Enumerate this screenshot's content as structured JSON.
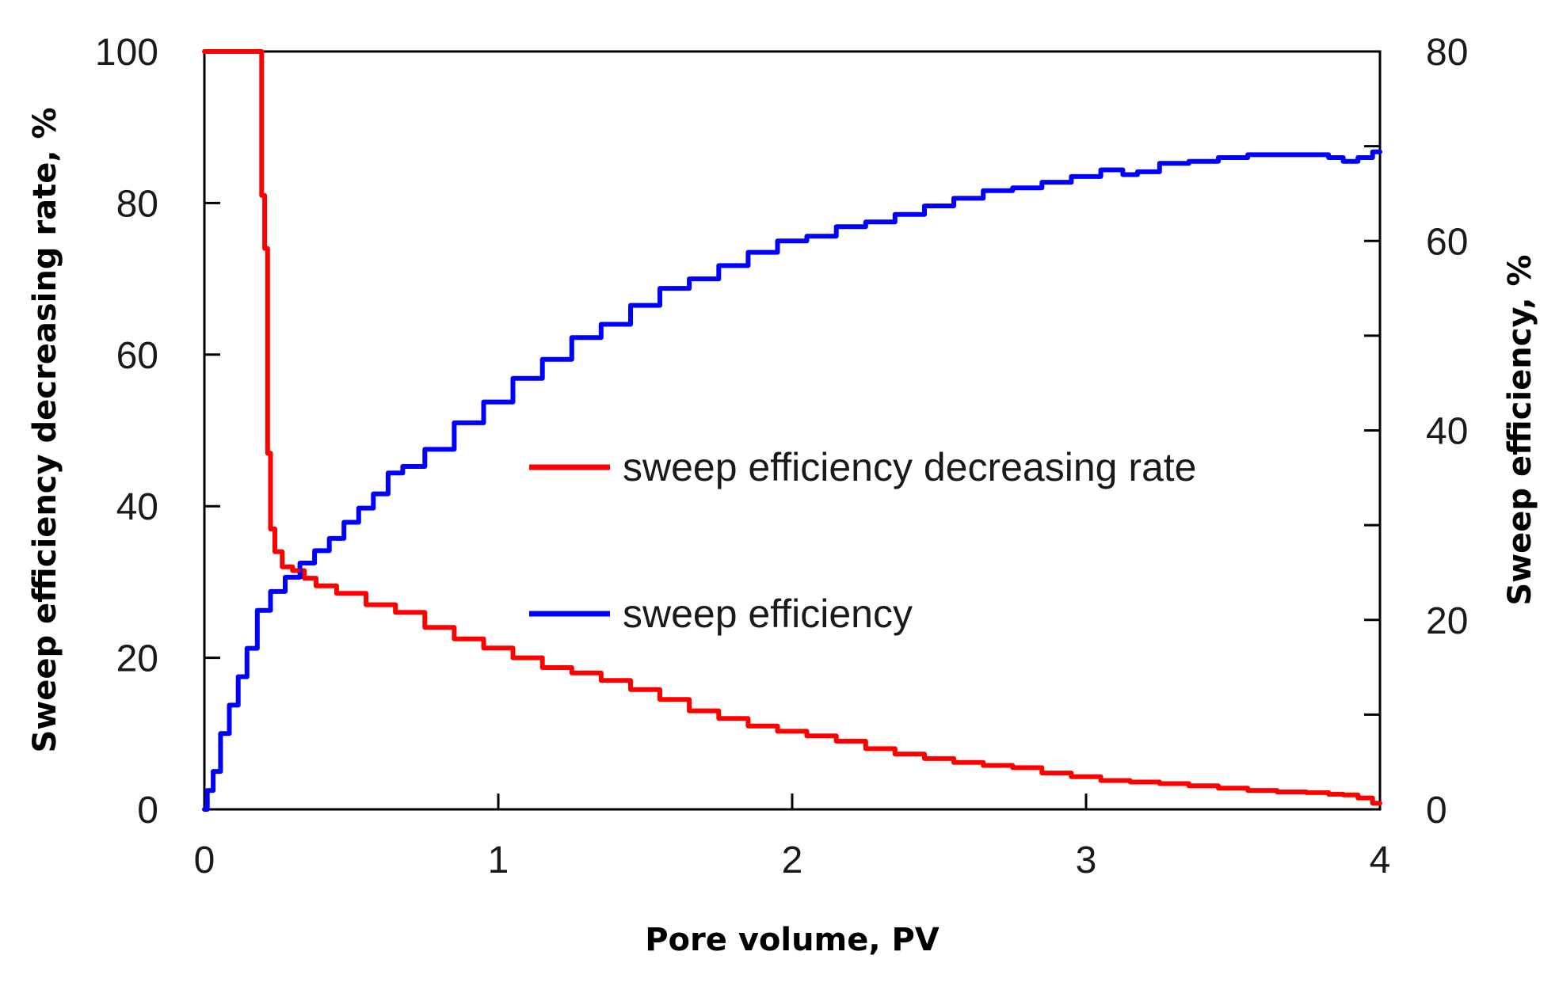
{
  "chart_data": {
    "type": "line",
    "xlabel": "Pore volume, PV",
    "ylabel_left": "Sweep efficiency decreasing rate, %",
    "ylabel_right": "Sweep efficiency, %",
    "xlim": [
      0,
      4
    ],
    "ylim_left": [
      0,
      100
    ],
    "ylim_right": [
      0,
      80
    ],
    "x_ticks": [
      0,
      1,
      2,
      3,
      4
    ],
    "x_tick_labels": [
      "0",
      "1",
      "2",
      "3",
      "4"
    ],
    "y_left_ticks": [
      0,
      20,
      40,
      60,
      80,
      100
    ],
    "y_left_tick_labels": [
      "0",
      "20",
      "40",
      "60",
      "80",
      "100"
    ],
    "y_right_ticks": [
      0,
      20,
      40,
      60,
      80
    ],
    "y_right_tick_labels": [
      "0",
      "20",
      "40",
      "60",
      "80"
    ],
    "y_right_minor_ticks": [
      10,
      30,
      50,
      70
    ],
    "grid": false,
    "legend_position": "center-right",
    "series": [
      {
        "name": "sweep efficiency decreasing rate",
        "axis": "left",
        "color": "#ff0000",
        "x": [
          0,
          0.19,
          0.2,
          0.21,
          0.22,
          0.23,
          0.25,
          0.28,
          0.32,
          0.36,
          0.4,
          0.5,
          0.6,
          0.7,
          0.8,
          0.9,
          1.0,
          1.1,
          1.2,
          1.3,
          1.4,
          1.5,
          1.6,
          1.7,
          1.8,
          1.9,
          2.0,
          2.1,
          2.2,
          2.3,
          2.4,
          2.5,
          2.6,
          2.7,
          2.8,
          2.9,
          3.0,
          3.1,
          3.2,
          3.3,
          3.4,
          3.5,
          3.6,
          3.7,
          3.8,
          3.85,
          3.9,
          3.95,
          4.0
        ],
        "y": [
          100,
          100,
          81,
          74,
          47,
          37,
          34,
          32,
          31.5,
          30.5,
          29.5,
          28.5,
          27,
          26,
          24,
          22.5,
          21.3,
          20,
          18.7,
          18,
          17,
          15.8,
          14.5,
          13,
          12,
          11,
          10.3,
          9.7,
          9,
          8,
          7.3,
          6.7,
          6.2,
          5.8,
          5.5,
          4.8,
          4.3,
          3.8,
          3.6,
          3.4,
          3.1,
          2.8,
          2.5,
          2.3,
          2.2,
          2.0,
          1.9,
          1.5,
          0.8
        ]
      },
      {
        "name": "sweep efficiency",
        "axis": "right",
        "color": "#0000ff",
        "x": [
          0,
          0.02,
          0.04,
          0.07,
          0.1,
          0.13,
          0.16,
          0.2,
          0.25,
          0.3,
          0.35,
          0.4,
          0.45,
          0.5,
          0.55,
          0.6,
          0.65,
          0.7,
          0.8,
          0.9,
          1.0,
          1.1,
          1.2,
          1.3,
          1.4,
          1.5,
          1.6,
          1.7,
          1.8,
          1.9,
          2.0,
          2.1,
          2.2,
          2.3,
          2.4,
          2.5,
          2.6,
          2.7,
          2.8,
          2.9,
          3.0,
          3.1,
          3.15,
          3.2,
          3.3,
          3.4,
          3.5,
          3.6,
          3.7,
          3.8,
          3.85,
          3.9,
          3.95,
          4.0
        ],
        "y": [
          0,
          2,
          4,
          8,
          11,
          14,
          17,
          21,
          23,
          24.5,
          26,
          27.3,
          28.6,
          30.3,
          31.8,
          33.3,
          35.5,
          36.2,
          38,
          40.8,
          43,
          45.5,
          47.5,
          49.8,
          51.2,
          53.2,
          55,
          56,
          57.4,
          58.8,
          60,
          60.5,
          61.5,
          62,
          62.8,
          63.7,
          64.5,
          65.3,
          65.6,
          66.2,
          66.8,
          67.5,
          67,
          67.3,
          68.2,
          68.4,
          68.8,
          69.1,
          69.1,
          69.1,
          68.8,
          68.4,
          68.8,
          69.4
        ]
      }
    ],
    "legend": [
      {
        "label": "sweep efficiency decreasing rate",
        "color": "#ff0000"
      },
      {
        "label": "sweep efficiency",
        "color": "#0000ff"
      }
    ]
  }
}
